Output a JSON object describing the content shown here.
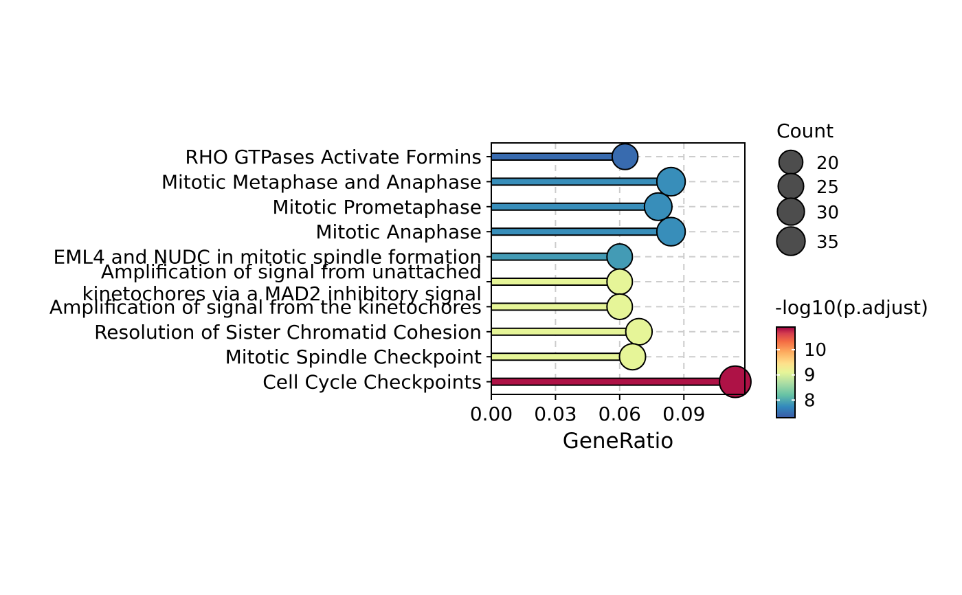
{
  "chart_data": {
    "type": "lollipop",
    "xlabel": "GeneRatio",
    "xlim": [
      0,
      0.1185
    ],
    "xticks": [
      "0.00",
      "0.03",
      "0.06",
      "0.09"
    ],
    "xtick_values": [
      0,
      0.03,
      0.06,
      0.09
    ],
    "grid": "dashed vertical at x ticks, dashed horizontal at each category",
    "categories": [
      [
        "RHO GTPases Activate Formins"
      ],
      [
        "Mitotic Metaphase and Anaphase"
      ],
      [
        "Mitotic Prometaphase"
      ],
      [
        "Mitotic Anaphase"
      ],
      [
        "EML4 and NUDC in mitotic spindle formation"
      ],
      [
        "Amplification of signal from unattached",
        "kinetochores via a MAD2 inhibitory signal"
      ],
      [
        "Amplification of signal from the kinetochores"
      ],
      [
        "Resolution of Sister Chromatid Cohesion"
      ],
      [
        "Mitotic Spindle Checkpoint"
      ],
      [
        "Cell Cycle Checkpoints"
      ]
    ],
    "gene_ratio": [
      0.0625,
      0.084,
      0.078,
      0.084,
      0.06,
      0.06,
      0.06,
      0.069,
      0.066,
      0.114
    ],
    "count": [
      26,
      35,
      32,
      35,
      25,
      25,
      25,
      28,
      27,
      47
    ],
    "neg_log10_padj": [
      7.45,
      7.75,
      7.75,
      7.75,
      7.85,
      9.0,
      9.0,
      9.0,
      9.0,
      10.8
    ],
    "size_legend": {
      "title": "Count",
      "values": [
        20,
        25,
        30,
        35
      ]
    },
    "color_legend": {
      "title": "-log10(p.adjust)",
      "ticks": [
        "10",
        "9",
        "8"
      ],
      "tick_values": [
        10,
        9,
        8
      ],
      "range": [
        7.3,
        10.9
      ]
    }
  }
}
